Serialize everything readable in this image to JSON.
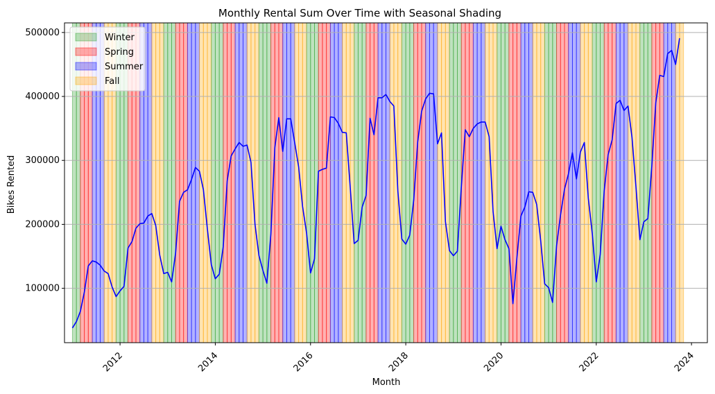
{
  "chart_data": {
    "type": "line",
    "title": "Monthly Rental Sum Over Time with Seasonal Shading",
    "xlabel": "Month",
    "ylabel": "Bikes Rented",
    "xlim": [
      "2010-11-01",
      "2024-05-01"
    ],
    "ylim": [
      15000,
      515000
    ],
    "x_ticks": [
      "2012",
      "2014",
      "2016",
      "2018",
      "2020",
      "2022",
      "2024"
    ],
    "y_ticks": [
      100000,
      200000,
      300000,
      400000,
      500000
    ],
    "grid": "horizontal",
    "legend_position": "top-left",
    "line_color": "#0000ff",
    "seasons": [
      {
        "name": "Winter",
        "months": [
          12,
          1,
          2
        ],
        "color": "#2ca02c"
      },
      {
        "name": "Spring",
        "months": [
          3,
          4,
          5
        ],
        "color": "#ff0000"
      },
      {
        "name": "Summer",
        "months": [
          6,
          7,
          8
        ],
        "color": "#0000ff"
      },
      {
        "name": "Fall",
        "months": [
          9,
          10,
          11
        ],
        "color": "#ffa500"
      }
    ],
    "series": [
      {
        "start_month": "2011-01",
        "values": [
          38000,
          48000,
          64000,
          94000,
          135000,
          143000,
          141000,
          136000,
          127000,
          123000,
          102000,
          87000,
          96000,
          103000,
          163000,
          173000,
          194000,
          201000,
          202000,
          213000,
          217000,
          198000,
          152000,
          123000,
          125000,
          110000,
          155000,
          236000,
          250000,
          254000,
          270000,
          289000,
          283000,
          254000,
          193000,
          137000,
          115000,
          122000,
          165000,
          268000,
          307000,
          318000,
          328000,
          322000,
          324000,
          297000,
          200000,
          151000,
          128000,
          108000,
          185000,
          320000,
          367000,
          314000,
          365000,
          365000,
          328000,
          290000,
          228000,
          186000,
          124000,
          146000,
          283000,
          286000,
          288000,
          368000,
          367000,
          358000,
          344000,
          343000,
          258000,
          170000,
          175000,
          227000,
          245000,
          366000,
          340000,
          398000,
          398000,
          403000,
          392000,
          385000,
          252000,
          177000,
          169000,
          183000,
          238000,
          329000,
          377000,
          396000,
          405000,
          404000,
          326000,
          343000,
          204000,
          159000,
          151000,
          158000,
          258000,
          348000,
          337000,
          350000,
          357000,
          360000,
          360000,
          337000,
          220000,
          162000,
          197000,
          176000,
          162000,
          76000,
          147000,
          213000,
          227000,
          251000,
          250000,
          231000,
          174000,
          107000,
          101000,
          78000,
          167000,
          215000,
          255000,
          279000,
          312000,
          271000,
          313000,
          328000,
          241000,
          185000,
          110000,
          153000,
          252000,
          309000,
          332000,
          389000,
          394000,
          378000,
          385000,
          336000,
          259000,
          176000,
          204000,
          209000,
          291000,
          390000,
          433000,
          431000,
          467000,
          472000,
          450000,
          491000
        ]
      }
    ],
    "legend": [
      "Winter",
      "Spring",
      "Summer",
      "Fall"
    ]
  }
}
